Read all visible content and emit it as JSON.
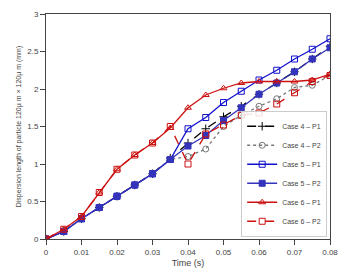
{
  "chart_data": {
    "type": "line",
    "xlabel": "Time (s)",
    "ylabel": "Dispersion length of particle 120µ m × 120µ m (mm)",
    "x": [
      0,
      0.005,
      0.01,
      0.015,
      0.02,
      0.025,
      0.03,
      0.035,
      0.04,
      0.045,
      0.05,
      0.055,
      0.06,
      0.065,
      0.07,
      0.075,
      0.08
    ],
    "series": [
      {
        "name": "Case 4 – P1",
        "color": "#000000",
        "line_style": "dashed",
        "marker": "plus",
        "values": [
          0,
          0.1,
          0.27,
          0.42,
          0.57,
          0.72,
          0.87,
          1.08,
          1.28,
          1.47,
          1.63,
          1.77,
          1.93,
          2.08,
          2.23,
          2.4,
          2.57
        ]
      },
      {
        "name": "Case 4 – P2",
        "color": "#777777",
        "line_style": "dotted",
        "marker": "circle-open",
        "values": [
          0,
          0.1,
          0.27,
          0.42,
          0.57,
          0.72,
          0.87,
          1.06,
          1.1,
          1.2,
          1.5,
          1.65,
          1.77,
          1.87,
          2.02,
          2.05,
          2.18
        ]
      },
      {
        "name": "Case 5 – P1",
        "color": "#1111cc",
        "line_style": "solid",
        "marker": "square-open",
        "values": [
          0,
          0.1,
          0.27,
          0.42,
          0.57,
          0.72,
          0.87,
          1.06,
          1.47,
          1.62,
          1.82,
          1.97,
          2.12,
          2.25,
          2.4,
          2.53,
          2.67
        ]
      },
      {
        "name": "Case 5 – P2",
        "color": "#3333bb",
        "line_style": "solid",
        "marker": "square",
        "values": [
          0,
          0.1,
          0.27,
          0.42,
          0.57,
          0.72,
          0.87,
          1.06,
          1.24,
          1.38,
          1.58,
          1.75,
          1.93,
          2.08,
          2.23,
          2.4,
          2.55
        ]
      },
      {
        "name": "Case 6 – P1",
        "color": "#cc1111",
        "line_style": "solid",
        "marker": "triangle-up-open",
        "values": [
          0,
          0.13,
          0.3,
          0.62,
          0.93,
          1.12,
          1.28,
          1.48,
          1.75,
          1.92,
          2.01,
          2.08,
          2.1,
          2.1,
          2.1,
          2.12,
          2.2
        ]
      },
      {
        "name": "Case 6 – P2",
        "color": "#cc1111",
        "line_style": "dashed",
        "marker": "square-open",
        "values": [
          0,
          0.13,
          0.3,
          0.62,
          0.93,
          1.12,
          1.28,
          1.5,
          1.0,
          1.4,
          1.52,
          1.65,
          1.68,
          1.8,
          1.95,
          2.1,
          2.18
        ]
      }
    ],
    "xlim": [
      0,
      0.08
    ],
    "ylim": [
      0,
      3
    ],
    "xticks": [
      0,
      0.01,
      0.02,
      0.03,
      0.04,
      0.05,
      0.06,
      0.07,
      0.08
    ],
    "yticks": [
      0,
      0.5,
      1,
      1.5,
      2,
      2.5,
      3
    ],
    "grid": false,
    "legend": "lower right"
  }
}
